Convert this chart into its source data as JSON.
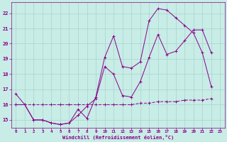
{
  "xlabel": "Windchill (Refroidissement éolien,°C)",
  "bg_color": "#c8ece6",
  "grid_color": "#a8d4ce",
  "line_color": "#880088",
  "xlim": [
    -0.5,
    23.5
  ],
  "ylim": [
    14.5,
    22.7
  ],
  "xticks": [
    0,
    1,
    2,
    3,
    4,
    5,
    6,
    7,
    8,
    9,
    10,
    11,
    12,
    13,
    14,
    15,
    16,
    17,
    18,
    19,
    20,
    21,
    22,
    23
  ],
  "yticks": [
    15,
    16,
    17,
    18,
    19,
    20,
    21,
    22
  ],
  "line1_x": [
    0,
    1,
    2,
    3,
    4,
    5,
    6,
    7,
    8,
    9,
    10,
    11,
    12,
    13,
    14,
    15,
    16,
    17,
    18,
    19,
    20,
    21,
    22
  ],
  "line1_y": [
    16.0,
    16.0,
    16.0,
    16.0,
    16.0,
    16.0,
    16.0,
    16.0,
    16.0,
    16.0,
    16.0,
    16.0,
    16.0,
    16.0,
    16.1,
    16.1,
    16.2,
    16.2,
    16.2,
    16.3,
    16.3,
    16.3,
    16.4
  ],
  "line2_x": [
    0,
    1,
    2,
    3,
    4,
    5,
    6,
    7,
    8,
    9,
    10,
    11,
    12,
    13,
    14,
    15,
    16,
    17,
    18,
    19,
    20,
    21,
    22
  ],
  "line2_y": [
    16.7,
    16.0,
    15.0,
    15.0,
    14.8,
    14.7,
    14.8,
    15.3,
    15.9,
    16.4,
    18.5,
    18.0,
    16.6,
    16.5,
    17.5,
    19.1,
    20.6,
    19.3,
    19.5,
    20.2,
    20.9,
    20.9,
    19.4
  ],
  "line3_x": [
    0,
    1,
    2,
    3,
    4,
    5,
    6,
    7,
    8,
    9,
    10,
    11,
    12,
    13,
    14,
    15,
    16,
    17,
    18,
    19,
    20,
    21,
    22
  ],
  "line3_y": [
    16.0,
    16.0,
    15.0,
    15.0,
    14.8,
    14.7,
    14.8,
    15.7,
    15.1,
    16.5,
    19.1,
    20.5,
    18.5,
    18.4,
    18.8,
    21.5,
    22.3,
    22.2,
    21.7,
    21.2,
    20.7,
    19.4,
    17.2
  ]
}
